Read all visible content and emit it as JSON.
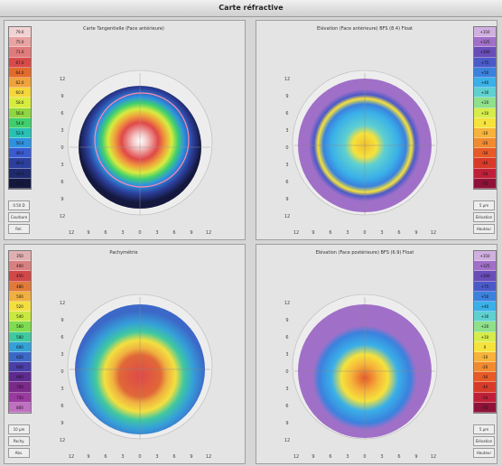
{
  "window": {
    "title": "Carte réfractive"
  },
  "panels": [
    {
      "title": "Carte Tangentielle (Face antérieure)",
      "scale": [
        "79.0",
        "75.0",
        "71.0",
        "67.0",
        "64.0",
        "62.0",
        "60.0",
        "58.0",
        "56.0",
        "54.0",
        "52.0",
        "50.0",
        "48.0",
        "46.0",
        "44.0",
        "42.0"
      ],
      "scale_colors": [
        "#f1d2d2",
        "#e9a3a3",
        "#e07b7b",
        "#d84a4a",
        "#e26b2c",
        "#f0a23b",
        "#f5d63b",
        "#d8ec3e",
        "#8fd640",
        "#3fcf6d",
        "#28c1b5",
        "#2f92e0",
        "#3a5bd0",
        "#2c3f9c",
        "#1f2a6e",
        "#14183e"
      ],
      "foot": [
        "0.50 D",
        "Courbure",
        "Rel."
      ],
      "axis": [
        "12",
        "9",
        "6",
        "3",
        "0",
        "3",
        "6",
        "9",
        "12"
      ]
    },
    {
      "title": "Elévation (Face antérieure) BFS (8.4) Float",
      "scale": [
        "+150",
        "+125",
        "+100",
        "+75",
        "+50",
        "+40",
        "+30",
        "+20",
        "+10",
        "0",
        "-10",
        "-20",
        "-30",
        "-40",
        "-50",
        "-75"
      ],
      "scale_colors": [
        "#d0b0e0",
        "#a070c8",
        "#6a4db8",
        "#4a5ac8",
        "#3a82de",
        "#3ab0e8",
        "#5fd0d0",
        "#8fe08a",
        "#d6ec4a",
        "#f6e23c",
        "#f6b23a",
        "#f08a30",
        "#e65a28",
        "#d83a2a",
        "#c01f3a",
        "#8e1238"
      ],
      "foot": [
        "5 µm",
        "Elévation",
        "Hauteur"
      ],
      "axis": [
        "12",
        "9",
        "6",
        "3",
        "0",
        "3",
        "6",
        "9",
        "12"
      ]
    },
    {
      "title": "Pachymétrie",
      "scale": [
        "350",
        "400",
        "450",
        "480",
        "500",
        "520",
        "540",
        "560",
        "580",
        "600",
        "620",
        "640",
        "660",
        "700",
        "750",
        "800"
      ],
      "scale_colors": [
        "#e0b0b0",
        "#d88080",
        "#d04848",
        "#e07a38",
        "#f0b040",
        "#f3e040",
        "#c9e840",
        "#7fdc50",
        "#40c8a0",
        "#35a0d8",
        "#3c68c8",
        "#4a3ea8",
        "#5f2a90",
        "#7b2a8a",
        "#9a3aa0",
        "#c070c0"
      ],
      "foot": [
        "10 µm",
        "Pachy.",
        "Abs."
      ],
      "axis": [
        "12",
        "9",
        "6",
        "3",
        "0",
        "3",
        "6",
        "9",
        "12"
      ]
    },
    {
      "title": "Elévation (Face postérieure) BFS (6.9) Float",
      "scale": [
        "+150",
        "+125",
        "+100",
        "+75",
        "+50",
        "+40",
        "+30",
        "+20",
        "+10",
        "0",
        "-10",
        "-20",
        "-30",
        "-40",
        "-50",
        "-75"
      ],
      "scale_colors": [
        "#d0b0e0",
        "#a070c8",
        "#6a4db8",
        "#4a5ac8",
        "#3a82de",
        "#3ab0e8",
        "#5fd0d0",
        "#8fe08a",
        "#d6ec4a",
        "#f6e23c",
        "#f6b23a",
        "#f08a30",
        "#e65a28",
        "#d83a2a",
        "#c01f3a",
        "#8e1238"
      ],
      "foot": [
        "5 µm",
        "Elévation",
        "Hauteur"
      ],
      "axis": [
        "12",
        "9",
        "6",
        "3",
        "0",
        "3",
        "6",
        "9",
        "12"
      ]
    }
  ]
}
